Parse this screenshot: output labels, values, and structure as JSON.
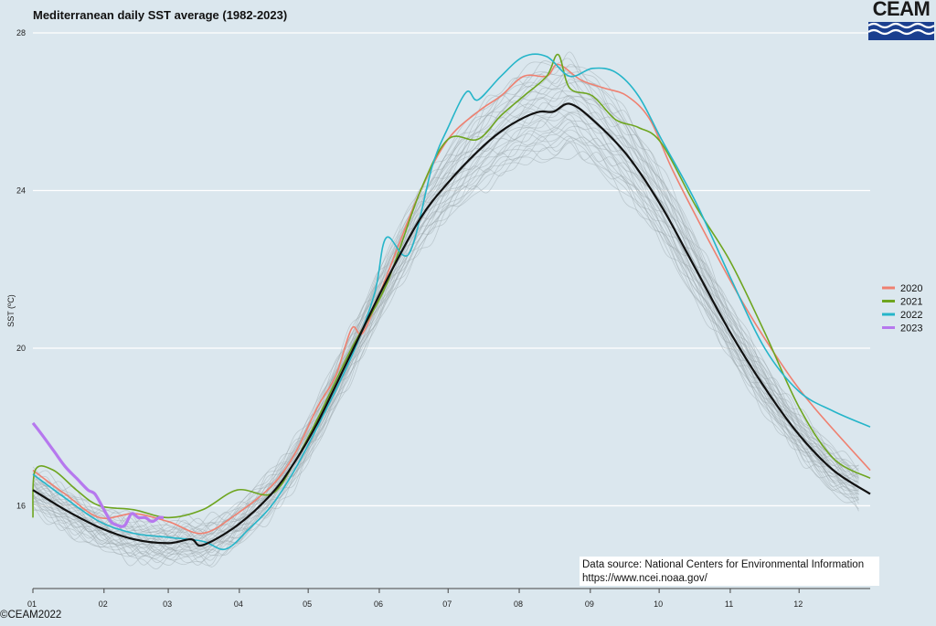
{
  "chart_data": {
    "type": "line",
    "title": "Mediterranean daily SST average (1982-2023)",
    "ylabel": "SST (ºC)",
    "xlabel": "",
    "ylim": [
      13.9,
      28
    ],
    "xlim": [
      1,
      366
    ],
    "grid": true,
    "legend_position": "right",
    "y_ticks": [
      "16",
      "20",
      "24",
      "28"
    ],
    "x_ticks": [
      {
        "label": "01",
        "day": 1
      },
      {
        "label": "02",
        "day": 32
      },
      {
        "label": "03",
        "day": 60
      },
      {
        "label": "04",
        "day": 91
      },
      {
        "label": "05",
        "day": 121
      },
      {
        "label": "06",
        "day": 152
      },
      {
        "label": "07",
        "day": 182
      },
      {
        "label": "08",
        "day": 213
      },
      {
        "label": "09",
        "day": 244
      },
      {
        "label": "10",
        "day": 274
      },
      {
        "label": "11",
        "day": 305
      },
      {
        "label": "12",
        "day": 335
      }
    ],
    "climatology": {
      "color": "#111111",
      "x": [
        1,
        15,
        30,
        45,
        60,
        70,
        75,
        90,
        105,
        115,
        125,
        140,
        155,
        170,
        182,
        195,
        205,
        215,
        222,
        228,
        235,
        245,
        260,
        275,
        290,
        305,
        320,
        335,
        350,
        366
      ],
      "y": [
        16.4,
        15.9,
        15.45,
        15.15,
        15.05,
        15.15,
        15.0,
        15.5,
        16.3,
        17.1,
        18.1,
        19.9,
        21.7,
        23.3,
        24.2,
        25.0,
        25.5,
        25.85,
        26.0,
        26.0,
        26.2,
        25.8,
        24.9,
        23.6,
        22.0,
        20.4,
        19.0,
        17.8,
        16.9,
        16.3
      ]
    },
    "series": [
      {
        "name": "2020",
        "color": "#ef8070",
        "x": [
          1,
          15,
          30,
          45,
          60,
          75,
          90,
          105,
          115,
          125,
          133,
          140,
          145,
          155,
          170,
          182,
          195,
          205,
          215,
          225,
          230,
          240,
          250,
          260,
          270,
          280,
          295,
          310,
          325,
          340,
          366
        ],
        "y": [
          16.9,
          16.3,
          15.7,
          15.8,
          15.6,
          15.3,
          15.8,
          16.5,
          17.3,
          18.5,
          19.3,
          20.5,
          20.4,
          21.8,
          24.0,
          25.3,
          26.0,
          26.4,
          26.9,
          26.9,
          27.2,
          26.8,
          26.6,
          26.4,
          25.8,
          24.5,
          22.8,
          21.2,
          19.8,
          18.6,
          16.9
        ]
      },
      {
        "name": "2021",
        "color": "#6ea51f",
        "x": [
          1,
          2,
          10,
          20,
          30,
          45,
          60,
          75,
          90,
          105,
          115,
          125,
          140,
          155,
          170,
          182,
          195,
          205,
          215,
          225,
          230,
          235,
          245,
          255,
          265,
          275,
          290,
          305,
          320,
          335,
          350,
          366
        ],
        "y": [
          15.7,
          16.9,
          16.9,
          16.4,
          16.0,
          15.9,
          15.7,
          15.9,
          16.4,
          16.3,
          17.1,
          18.2,
          20.0,
          21.6,
          24.0,
          25.3,
          25.3,
          25.9,
          26.4,
          26.9,
          27.45,
          26.6,
          26.4,
          25.8,
          25.6,
          25.2,
          23.6,
          22.2,
          20.4,
          18.5,
          17.2,
          16.7
        ]
      },
      {
        "name": "2022",
        "color": "#25b5c9",
        "x": [
          1,
          15,
          30,
          45,
          60,
          75,
          85,
          95,
          105,
          115,
          125,
          140,
          150,
          155,
          165,
          175,
          182,
          190,
          195,
          205,
          215,
          225,
          235,
          245,
          255,
          265,
          275,
          290,
          305,
          320,
          335,
          350,
          366
        ],
        "y": [
          16.8,
          16.2,
          15.6,
          15.3,
          15.2,
          15.1,
          14.9,
          15.4,
          16.0,
          16.9,
          18.0,
          19.8,
          21.4,
          22.8,
          22.4,
          24.6,
          25.6,
          26.5,
          26.3,
          26.9,
          27.4,
          27.4,
          26.9,
          27.1,
          27.0,
          26.4,
          25.3,
          23.7,
          21.8,
          20.0,
          18.9,
          18.4,
          18.0
        ]
      },
      {
        "name": "2023",
        "color": "#b678ee",
        "x": [
          1,
          5,
          10,
          15,
          20,
          25,
          28,
          32,
          35,
          38,
          41,
          44,
          47,
          50,
          53,
          56,
          58
        ],
        "y": [
          18.1,
          17.8,
          17.4,
          17.0,
          16.7,
          16.4,
          16.3,
          15.9,
          15.6,
          15.5,
          15.5,
          15.8,
          15.7,
          15.7,
          15.6,
          15.7,
          15.7
        ]
      }
    ]
  },
  "logo": {
    "text": "CEAM"
  },
  "source_note": {
    "line1": "Data source: National Centers for Environmental Information",
    "line2": "https://www.ncei.noaa.gov/"
  },
  "credit": "©CEAM2022",
  "colors": {
    "background": "#dbe7ee",
    "grid": "#ffffff",
    "climatology_band": "#9aa3a8",
    "logo_blue": "#1b3f8f"
  }
}
